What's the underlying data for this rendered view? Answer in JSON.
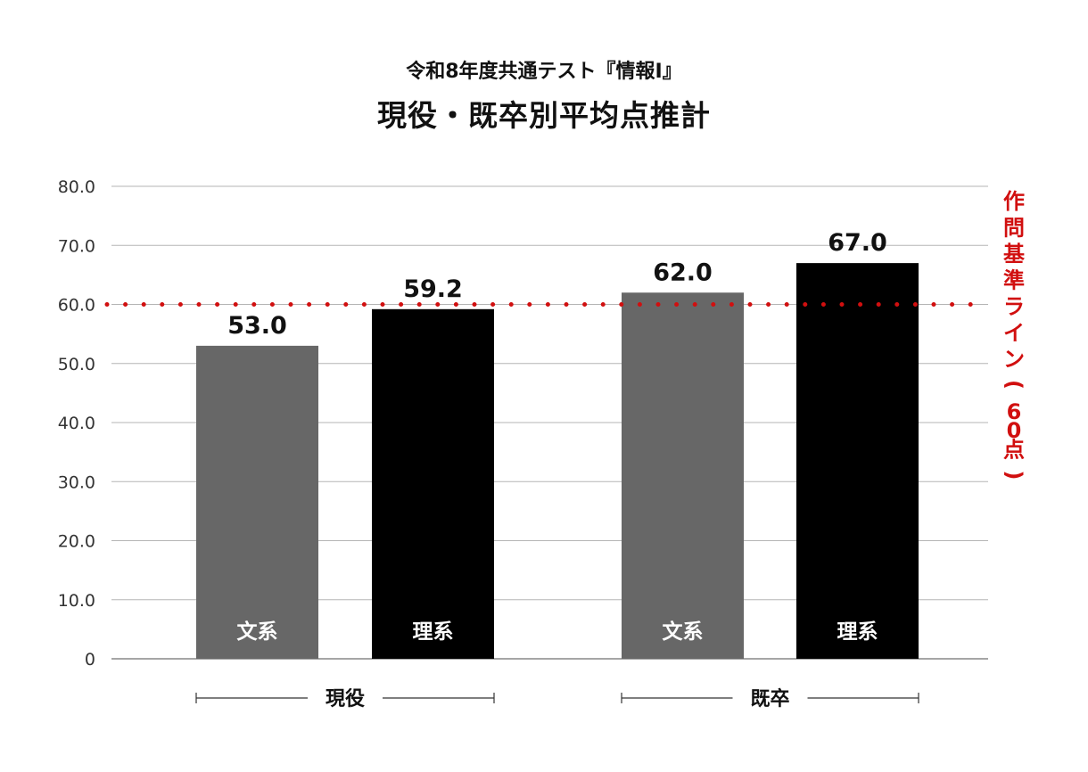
{
  "chart_data": {
    "type": "bar",
    "subtitle": "令和8年度共通テスト『情報Ⅰ』",
    "title": "現役・既卒別平均点推計",
    "ylim": [
      0,
      80
    ],
    "yticks": [
      "0",
      "10.0",
      "20.0",
      "30.0",
      "40.0",
      "50.0",
      "60.0",
      "70.0",
      "80.0"
    ],
    "grid": true,
    "groups": [
      {
        "name": "現役",
        "bars": [
          {
            "category": "文系",
            "value": 53.0,
            "label": "53.0",
            "color": "#676767"
          },
          {
            "category": "理系",
            "value": 59.2,
            "label": "59.2",
            "color": "#000000"
          }
        ]
      },
      {
        "name": "既卒",
        "bars": [
          {
            "category": "文系",
            "value": 62.0,
            "label": "62.0",
            "color": "#676767"
          },
          {
            "category": "理系",
            "value": 67.0,
            "label": "67.0",
            "color": "#000000"
          }
        ]
      }
    ],
    "reference_line": {
      "value": 60,
      "label": "作問基準ライン(60点)",
      "color": "#d10f0f",
      "style": "dotted"
    }
  }
}
